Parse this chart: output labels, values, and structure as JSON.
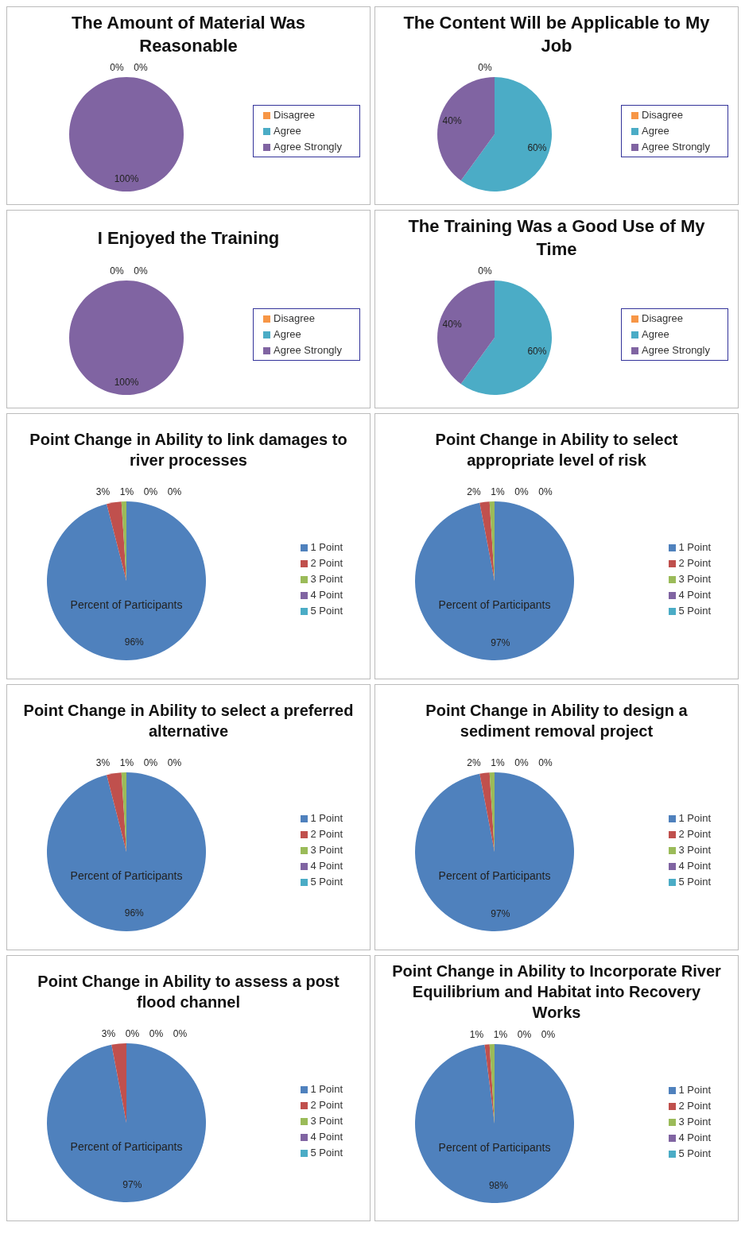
{
  "chart_data": [
    {
      "type": "pie",
      "title": "The Amount of Material Was Reasonable",
      "categories": [
        "Disagree",
        "Agree",
        "Agree Strongly"
      ],
      "values": [
        0,
        0,
        100
      ],
      "value_labels": [
        "0%",
        "0%",
        "100%"
      ],
      "colors": [
        "#f79646",
        "#4bacc6",
        "#8064a2"
      ],
      "legend": "right"
    },
    {
      "type": "pie",
      "title": "The Content Will be Applicable to My Job",
      "categories": [
        "Disagree",
        "Agree",
        "Agree Strongly"
      ],
      "values": [
        0,
        60,
        40
      ],
      "value_labels": [
        "0%",
        "60%",
        "40%"
      ],
      "colors": [
        "#f79646",
        "#4bacc6",
        "#8064a2"
      ],
      "legend": "right"
    },
    {
      "type": "pie",
      "title": "I Enjoyed the Training",
      "categories": [
        "Disagree",
        "Agree",
        "Agree Strongly"
      ],
      "values": [
        0,
        0,
        100
      ],
      "value_labels": [
        "0%",
        "0%",
        "100%"
      ],
      "colors": [
        "#f79646",
        "#4bacc6",
        "#8064a2"
      ],
      "legend": "right"
    },
    {
      "type": "pie",
      "title": "The Training Was a Good Use of My Time",
      "categories": [
        "Disagree",
        "Agree",
        "Agree Strongly"
      ],
      "values": [
        0,
        60,
        40
      ],
      "value_labels": [
        "0%",
        "60%",
        "40%"
      ],
      "colors": [
        "#f79646",
        "#4bacc6",
        "#8064a2"
      ],
      "legend": "right"
    },
    {
      "type": "pie",
      "title": "Point Change in Ability to link damages to river processes",
      "categories": [
        "1 Point",
        "2 Point",
        "3 Point",
        "4 Point",
        "5 Point"
      ],
      "values": [
        96,
        3,
        1,
        0,
        0
      ],
      "value_labels": [
        "96%",
        "3%",
        "1%",
        "0%",
        "0%"
      ],
      "colors": [
        "#4f81bd",
        "#c0504d",
        "#9bbb59",
        "#8064a2",
        "#4bacc6"
      ],
      "legend": "right",
      "annotations": [
        "Percent of Participants"
      ]
    },
    {
      "type": "pie",
      "title": "Point Change in Ability to select appropriate level of risk",
      "categories": [
        "1 Point",
        "2 Point",
        "3 Point",
        "4 Point",
        "5 Point"
      ],
      "values": [
        97,
        2,
        1,
        0,
        0
      ],
      "value_labels": [
        "97%",
        "2%",
        "1%",
        "0%",
        "0%"
      ],
      "colors": [
        "#4f81bd",
        "#c0504d",
        "#9bbb59",
        "#8064a2",
        "#4bacc6"
      ],
      "legend": "right",
      "annotations": [
        "Percent of Participants"
      ]
    },
    {
      "type": "pie",
      "title": "Point Change in Ability to select a preferred alternative",
      "categories": [
        "1 Point",
        "2 Point",
        "3 Point",
        "4 Point",
        "5 Point"
      ],
      "values": [
        96,
        3,
        1,
        0,
        0
      ],
      "value_labels": [
        "96%",
        "3%",
        "1%",
        "0%",
        "0%"
      ],
      "colors": [
        "#4f81bd",
        "#c0504d",
        "#9bbb59",
        "#8064a2",
        "#4bacc6"
      ],
      "legend": "right",
      "annotations": [
        "Percent of Participants"
      ]
    },
    {
      "type": "pie",
      "title": "Point Change in Ability to design a sediment removal project",
      "categories": [
        "1 Point",
        "2 Point",
        "3 Point",
        "4 Point",
        "5 Point"
      ],
      "values": [
        97,
        2,
        1,
        0,
        0
      ],
      "value_labels": [
        "97%",
        "2%",
        "1%",
        "0%",
        "0%"
      ],
      "colors": [
        "#4f81bd",
        "#c0504d",
        "#9bbb59",
        "#8064a2",
        "#4bacc6"
      ],
      "legend": "right",
      "annotations": [
        "Percent of Participants"
      ]
    },
    {
      "type": "pie",
      "title": "Point Change in Ability to assess a post flood channel",
      "categories": [
        "1 Point",
        "2 Point",
        "3 Point",
        "4 Point",
        "5 Point"
      ],
      "values": [
        97,
        3,
        0,
        0,
        0
      ],
      "value_labels": [
        "97%",
        "3%",
        "0%",
        "0%",
        "0%"
      ],
      "colors": [
        "#4f81bd",
        "#c0504d",
        "#9bbb59",
        "#8064a2",
        "#4bacc6"
      ],
      "legend": "right",
      "annotations": [
        "Percent of Participants"
      ]
    },
    {
      "type": "pie",
      "title": "Point Change in Ability to Incorporate River Equilibrium and Habitat into Recovery Works",
      "categories": [
        "1 Point",
        "2 Point",
        "3 Point",
        "4 Point",
        "5 Point"
      ],
      "values": [
        98,
        1,
        1,
        0,
        0
      ],
      "value_labels": [
        "98%",
        "1%",
        "1%",
        "0%",
        "0%"
      ],
      "colors": [
        "#4f81bd",
        "#c0504d",
        "#9bbb59",
        "#8064a2",
        "#4bacc6"
      ],
      "legend": "right",
      "annotations": [
        "Percent of Participants"
      ]
    }
  ]
}
